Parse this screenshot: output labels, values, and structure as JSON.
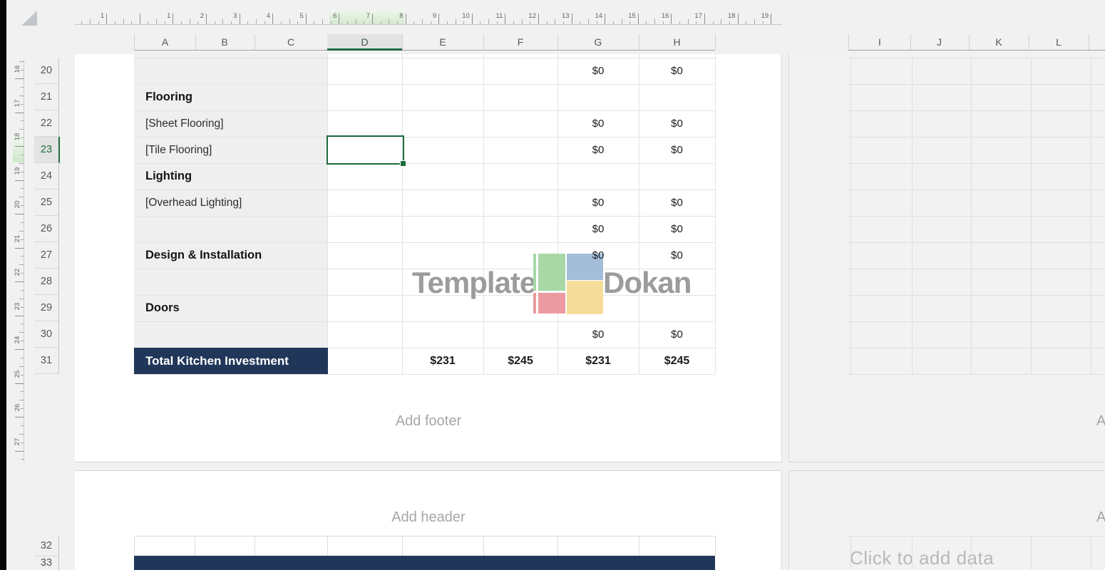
{
  "rulers": {
    "horizontal": {
      "margin_label": "1",
      "unit_labels": [
        "1",
        "2",
        "3",
        "4",
        "5",
        "6",
        "7",
        "8",
        "9",
        "10",
        "11",
        "12",
        "13",
        "14",
        "15",
        "16",
        "17",
        "18",
        "19"
      ]
    },
    "vertical": {
      "unit_labels": [
        "16",
        "17",
        "18",
        "19",
        "20",
        "21",
        "22",
        "23",
        "24",
        "25",
        "26",
        "27"
      ]
    }
  },
  "column_headers": {
    "left": [
      "A",
      "B",
      "C",
      "D",
      "E",
      "F",
      "G",
      "H"
    ],
    "right": [
      "I",
      "J",
      "K",
      "L"
    ],
    "selected": "D"
  },
  "row_headers": {
    "page1": [
      "20",
      "21",
      "22",
      "23",
      "24",
      "25",
      "26",
      "27",
      "28",
      "29",
      "30",
      "31"
    ],
    "page2": [
      "32",
      "33"
    ],
    "selected": "23"
  },
  "table": {
    "rows": [
      {
        "row": "20",
        "label": "",
        "style": "item",
        "values": {
          "G": "$0",
          "H": "$0"
        }
      },
      {
        "row": "21",
        "label": "Flooring",
        "style": "section",
        "values": {}
      },
      {
        "row": "22",
        "label": "[Sheet Flooring]",
        "style": "item",
        "values": {
          "G": "$0",
          "H": "$0"
        }
      },
      {
        "row": "23",
        "label": "[Tile Flooring]",
        "style": "item",
        "values": {
          "G": "$0",
          "H": "$0"
        }
      },
      {
        "row": "24",
        "label": "Lighting",
        "style": "section",
        "values": {}
      },
      {
        "row": "25",
        "label": "[Overhead Lighting]",
        "style": "item",
        "values": {
          "G": "$0",
          "H": "$0"
        }
      },
      {
        "row": "26",
        "label": "",
        "style": "item",
        "values": {
          "G": "$0",
          "H": "$0"
        }
      },
      {
        "row": "27",
        "label": "Design & Installation",
        "style": "section",
        "values": {
          "G": "$0",
          "H": "$0"
        }
      },
      {
        "row": "28",
        "label": "",
        "style": "item",
        "values": {}
      },
      {
        "row": "29",
        "label": "Doors",
        "style": "section",
        "values": {}
      },
      {
        "row": "30",
        "label": "",
        "style": "item",
        "values": {
          "G": "$0",
          "H": "$0"
        }
      },
      {
        "row": "31",
        "label": "Total Kitchen Investment",
        "style": "total",
        "values": {
          "E": "$231",
          "F": "$245",
          "G": "$231",
          "H": "$245"
        }
      }
    ],
    "selected_cell": {
      "column": "D",
      "row": "23"
    }
  },
  "watermark": {
    "word_left": "Template",
    "word_right": "Dokan",
    "logo_colors": {
      "green": "#a7d8a6",
      "blue": "#a4bed9",
      "red": "#ea9aa0",
      "yellow": "#f5dc99"
    }
  },
  "placeholders": {
    "page1_footer": "Add footer",
    "page2_header": "Add header",
    "right_footer_partial": "A",
    "right_header_partial": "A",
    "right_click_prompt": "Click to add data"
  },
  "colors": {
    "accent_green": "#1e6b41",
    "selection_tint": "#e3e3e3",
    "navy": "#21375a",
    "watermark_gray": "#9c9c9c",
    "gridline": "#e3e3e3",
    "gray_cell_fill": "#efefef"
  }
}
